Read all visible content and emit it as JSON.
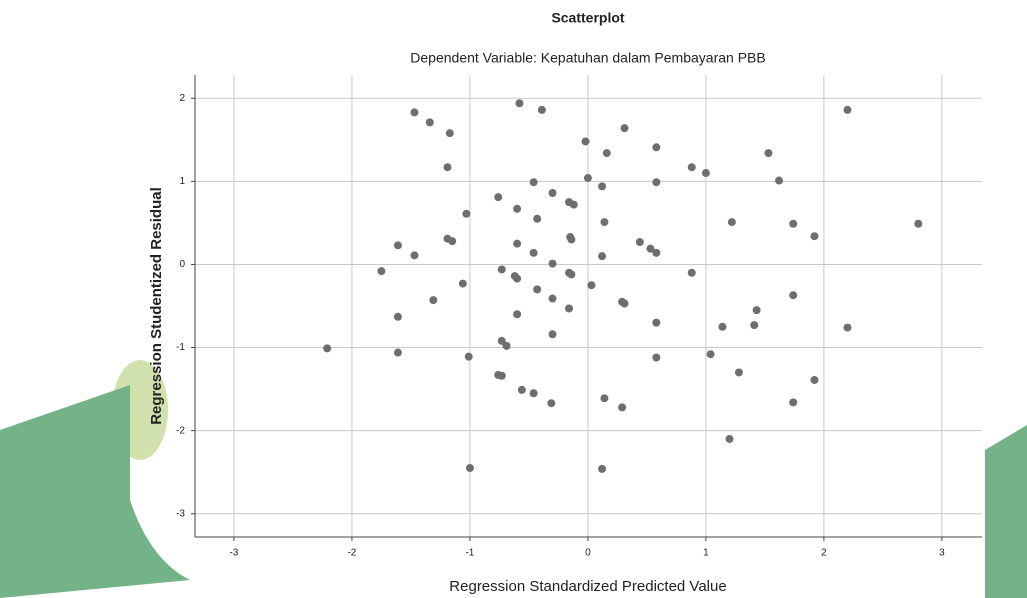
{
  "chart_data": {
    "type": "scatter",
    "title": "Scatterplot",
    "subtitle": "Dependent Variable: Kepatuhan dalam Pembayaran PBB",
    "x_label": "Regression Standardized Predicted Value",
    "y_label": "Regression Studentized Residual",
    "xlim": [
      -3.33,
      3.34
    ],
    "ylim": [
      -3.28,
      2.28
    ],
    "xticks": [
      -3,
      -2,
      -1,
      0,
      1,
      2,
      3
    ],
    "yticks": [
      -3,
      -2,
      -1,
      0,
      1,
      2
    ],
    "grid": true,
    "series": [
      {
        "color": "#6e6e6e",
        "x": [
          -1.47,
          -1.34,
          -1.17,
          -0.58,
          -0.39,
          -1.19,
          -0.02,
          0.31,
          0.16,
          0.58,
          0.88,
          1.0,
          1.53,
          2.2,
          -0.46,
          0.0,
          0.12,
          0.58,
          1.62,
          -0.3,
          -0.76,
          -0.16,
          -0.12,
          -1.03,
          -0.6,
          -0.43,
          0.14,
          1.22,
          1.74,
          2.8,
          1.92,
          -1.19,
          -1.15,
          -0.15,
          -0.14,
          -0.6,
          0.44,
          0.53,
          0.58,
          -1.61,
          -1.47,
          -0.46,
          0.12,
          -0.3,
          -1.75,
          -0.73,
          -0.62,
          -0.6,
          -0.16,
          -0.14,
          0.88,
          -1.06,
          0.03,
          -0.43,
          -0.3,
          -1.31,
          0.29,
          0.31,
          -0.16,
          1.74,
          1.43,
          -1.61,
          -0.6,
          0.58,
          1.14,
          1.41,
          2.2,
          -0.3,
          -0.73,
          -0.69,
          -2.21,
          -1.61,
          -1.01,
          0.58,
          1.04,
          -0.76,
          -0.73,
          1.28,
          1.92,
          -0.56,
          -0.46,
          -0.31,
          0.14,
          0.29,
          1.74,
          1.2,
          -1.0,
          0.12
        ],
        "values": [
          1.83,
          1.71,
          1.58,
          1.94,
          1.86,
          1.17,
          1.48,
          1.64,
          1.34,
          1.41,
          1.17,
          1.1,
          1.34,
          1.86,
          0.99,
          1.04,
          0.94,
          0.99,
          1.01,
          0.86,
          0.81,
          0.75,
          0.72,
          0.61,
          0.67,
          0.55,
          0.51,
          0.51,
          0.49,
          0.49,
          0.34,
          0.31,
          0.28,
          0.33,
          0.3,
          0.25,
          0.27,
          0.19,
          0.14,
          0.23,
          0.11,
          0.14,
          0.1,
          0.01,
          -0.08,
          -0.06,
          -0.14,
          -0.17,
          -0.1,
          -0.12,
          -0.1,
          -0.23,
          -0.25,
          -0.3,
          -0.41,
          -0.43,
          -0.45,
          -0.47,
          -0.53,
          -0.37,
          -0.55,
          -0.63,
          -0.6,
          -0.7,
          -0.75,
          -0.73,
          -0.76,
          -0.84,
          -0.92,
          -0.98,
          -1.01,
          -1.06,
          -1.11,
          -1.12,
          -1.08,
          -1.33,
          -1.34,
          -1.3,
          -1.39,
          -1.51,
          -1.55,
          -1.67,
          -1.61,
          -1.72,
          -1.66,
          -2.1,
          -2.45,
          -2.46
        ]
      }
    ]
  }
}
